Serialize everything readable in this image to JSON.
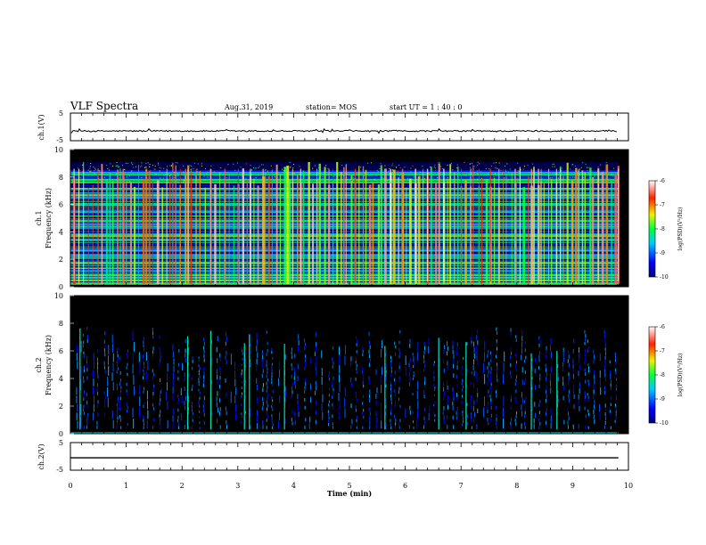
{
  "header": {
    "title": "VLF Spectra",
    "date": "Aug.31, 2019",
    "station": "station= MOS",
    "start_ut": "start  UT =   1 : 40 : 0"
  },
  "colors": {
    "background": "#ffffff",
    "spectrogram_bg": "#000000",
    "waveform": "#000000"
  },
  "chart_data": [
    {
      "type": "line",
      "id": "ch1-waveform",
      "ylabel": "ch.1(V)",
      "ylim": [
        -5,
        5
      ],
      "yticks": [
        "5",
        "-5"
      ],
      "xlim": [
        0,
        10
      ],
      "level": -1.5
    },
    {
      "type": "heatmap",
      "id": "ch1-spectrogram",
      "ylabel_line1": "ch.1",
      "ylabel_line2": "Frequency (kHz)",
      "ylim": [
        0,
        10
      ],
      "yticks": [
        "0",
        "2",
        "4",
        "6",
        "8",
        "10"
      ],
      "xlim": [
        0,
        10
      ],
      "data_end_min": 9.82,
      "colorbar": {
        "label": "log(PSD)(V²/Hz)",
        "range": [
          -10,
          -6
        ],
        "ticks": [
          "-6",
          "-7",
          "-8",
          "-9",
          "-10"
        ]
      }
    },
    {
      "type": "heatmap",
      "id": "ch2-spectrogram",
      "ylabel_line1": "ch.2",
      "ylabel_line2": "Frequency (kHz)",
      "ylim": [
        0,
        10
      ],
      "yticks": [
        "0",
        "2",
        "4",
        "6",
        "8",
        "10"
      ],
      "xlim": [
        0,
        10
      ],
      "data_end_min": 9.82,
      "colorbar": {
        "label": "log(PSD)(V²/Hz)",
        "range": [
          -10,
          -6
        ],
        "ticks": [
          "-6",
          "-7",
          "-8",
          "-9",
          "-10"
        ]
      }
    },
    {
      "type": "line",
      "id": "ch2-waveform",
      "ylabel": "ch.2(V)",
      "ylim": [
        -5,
        5
      ],
      "yticks": [
        "5",
        "-5"
      ],
      "xlim": [
        0,
        10
      ],
      "level": -0.5
    }
  ],
  "x_axis": {
    "label": "Time (min)",
    "ticks": [
      "0",
      "1",
      "2",
      "3",
      "4",
      "5",
      "6",
      "7",
      "8",
      "9",
      "10"
    ]
  }
}
